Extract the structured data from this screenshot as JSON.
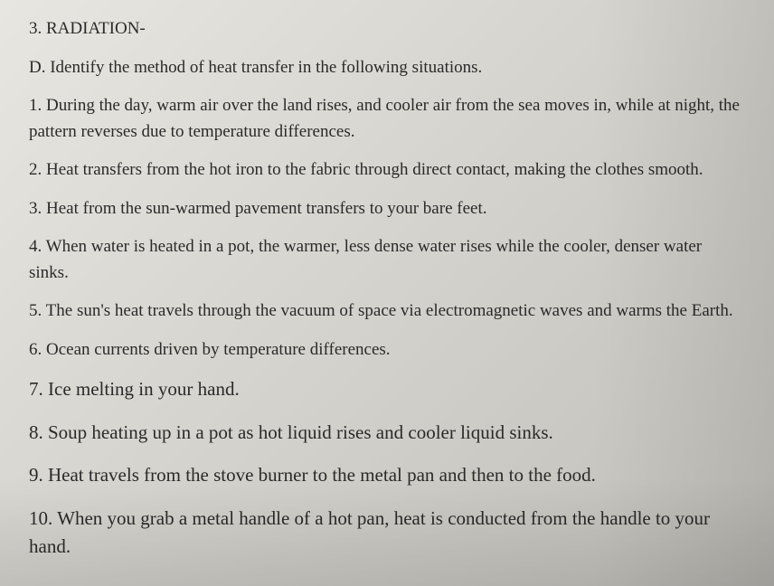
{
  "heading3": "3. RADIATION-",
  "headingD": "D. Identify the method of heat transfer in the following situations.",
  "items": [
    "1. During the day, warm air over the land rises, and cooler air from the sea moves in, while at night, the pattern reverses due to temperature differences.",
    "2. Heat transfers from the hot iron to the fabric through direct contact, making the clothes smooth.",
    "3. Heat from the sun-warmed pavement transfers to your bare feet.",
    "4. When water is heated in a pot, the warmer, less dense water rises while the cooler, denser water sinks.",
    "5. The sun's heat travels through the vacuum of space via electromagnetic waves and warms the Earth.",
    "6. Ocean currents driven by temperature differences.",
    "7. Ice melting in your hand.",
    "8. Soup heating up in a pot as hot liquid rises and cooler liquid sinks.",
    "9. Heat travels from the stove burner to the metal pan and then to the food.",
    "10. When you grab a metal handle of a hot pan, heat is conducted from the handle to your hand."
  ],
  "style": {
    "text_color": "#2a2a2a",
    "bg_gradient_start": "#e8e6e0",
    "bg_gradient_end": "#c0beb8",
    "base_font_size": 19,
    "larger_font_size": 21,
    "font_family": "Georgia, Times New Roman, serif"
  }
}
